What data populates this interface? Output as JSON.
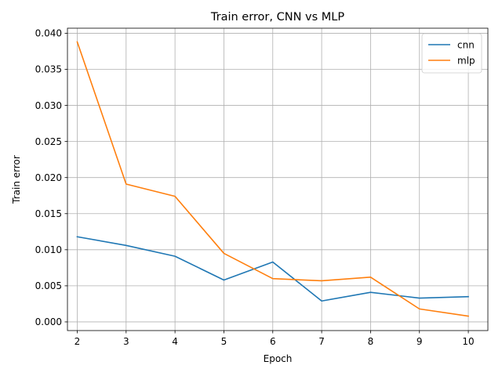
{
  "chart_data": {
    "type": "line",
    "title": "Train error, CNN vs MLP",
    "xlabel": "Epoch",
    "ylabel": "Train error",
    "x": [
      2,
      3,
      4,
      5,
      6,
      7,
      8,
      9,
      10
    ],
    "xlim": [
      1.8,
      10.4
    ],
    "ylim": [
      -0.0012,
      0.0407
    ],
    "xticks": [
      "2",
      "3",
      "4",
      "5",
      "6",
      "7",
      "8",
      "9",
      "10"
    ],
    "yticks": [
      "0.000",
      "0.005",
      "0.010",
      "0.015",
      "0.020",
      "0.025",
      "0.030",
      "0.035",
      "0.040"
    ],
    "grid": true,
    "legend_position": "top-right",
    "series": [
      {
        "name": "cnn",
        "color": "#1f77b4",
        "values": [
          0.0118,
          0.0106,
          0.0091,
          0.0058,
          0.0083,
          0.0029,
          0.0041,
          0.0033,
          0.0035
        ]
      },
      {
        "name": "mlp",
        "color": "#ff7f0e",
        "values": [
          0.0388,
          0.0191,
          0.0174,
          0.0095,
          0.006,
          0.0057,
          0.0062,
          0.0018,
          0.0008
        ]
      }
    ]
  }
}
